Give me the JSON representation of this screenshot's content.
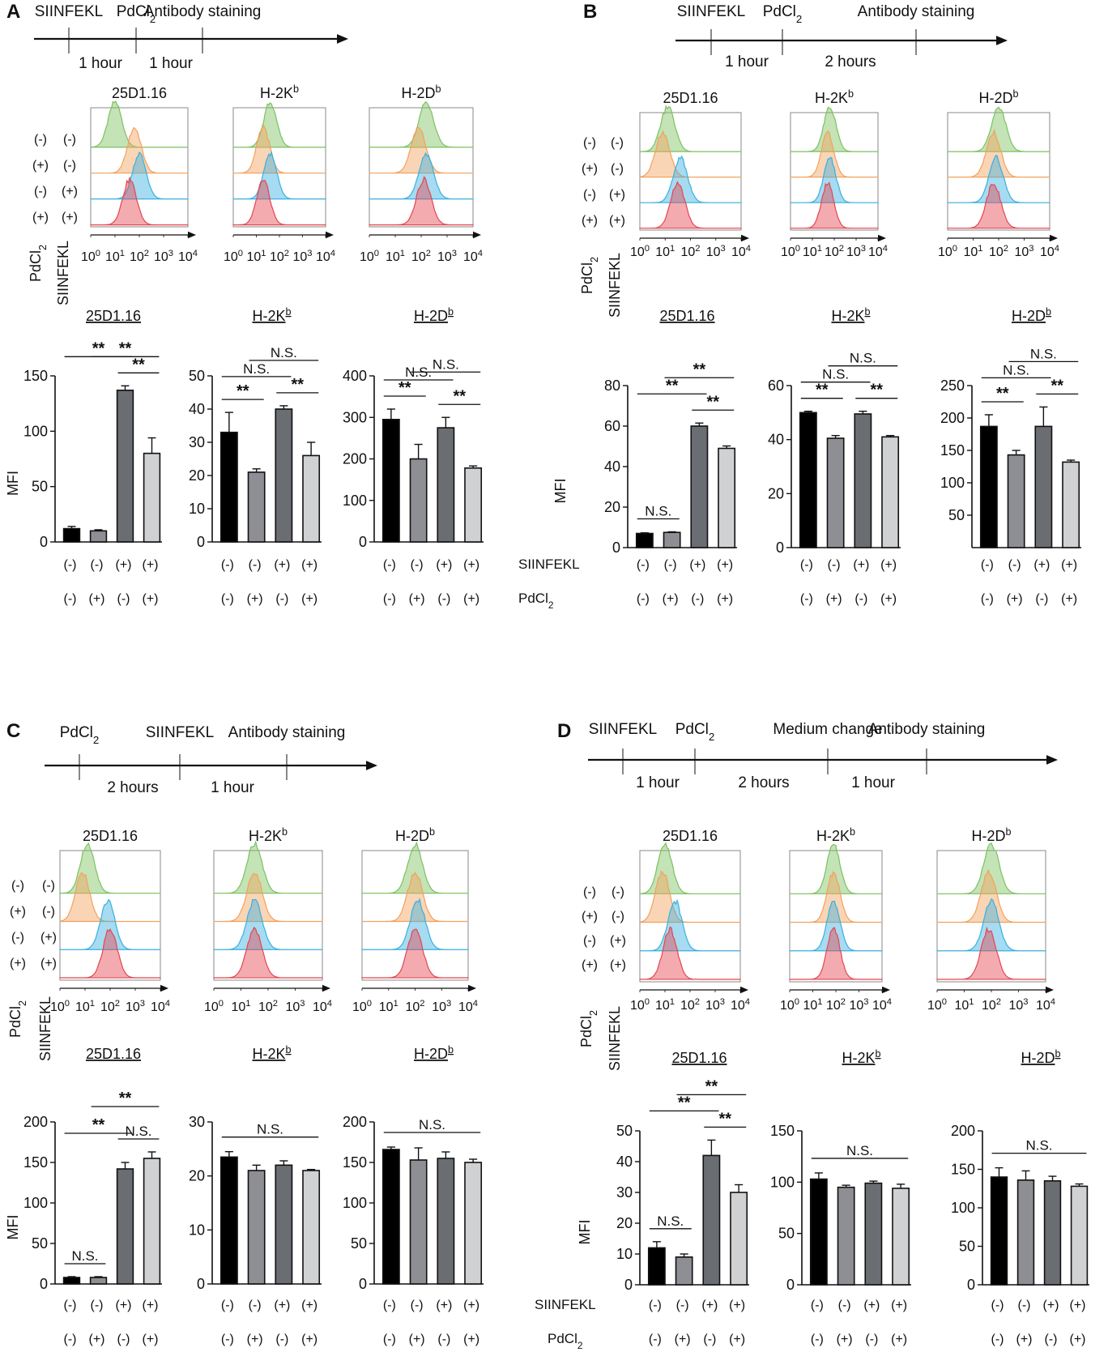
{
  "figure": {
    "common": {
      "hist_titles": [
        "25D1.16",
        "H-2Kb",
        "H-2Db"
      ],
      "pdcl2": "PdCl2",
      "siinfekl": "SIINFEKL",
      "mfi": "MFI",
      "minus": "(-)",
      "plus": "(+)",
      "ns": "N.S.",
      "sig": "**",
      "row_states": [
        [
          "(-)",
          "(-)"
        ],
        [
          "(+)",
          "(-)"
        ],
        [
          "(-)",
          "(+)"
        ],
        [
          "(+)",
          "(+)"
        ]
      ],
      "siinfekl_row": [
        "(-)",
        "(-)",
        "(+)",
        "(+)"
      ],
      "pdcl2_row": [
        "(-)",
        "(+)",
        "(-)",
        "(+)"
      ],
      "hist_ticks": [
        "10^0",
        "10^1",
        "10^2",
        "10^3",
        "10^4"
      ],
      "colors": {
        "green": "#7cc160",
        "orange": "#f2a15d",
        "blue": "#39b0df",
        "red": "#e5454f",
        "bars": [
          "#000000",
          "#8d8f94",
          "#6a6d72",
          "#cfd1d3"
        ]
      }
    },
    "panels": [
      {
        "letter": "A",
        "timeline": {
          "events": [
            "SIINFEKL",
            "PdCl2",
            "Antibody staining"
          ],
          "intervals": [
            "1 hour",
            "1 hour"
          ]
        },
        "chart_data": [
          {
            "type": "bar",
            "title": "25D1.16",
            "ylabel": "MFI",
            "ylim": [
              0,
              150
            ],
            "yticks": [
              0,
              50,
              100,
              150
            ],
            "values": [
              12,
              10,
              137,
              80
            ],
            "errors": [
              2,
              1,
              4,
              14
            ],
            "comparisons": [
              {
                "i": 0,
                "j": 2,
                "label": "**"
              },
              {
                "i": 1,
                "j": 3,
                "label": "**"
              },
              {
                "i": 2,
                "j": 3,
                "label": "**"
              }
            ]
          },
          {
            "type": "bar",
            "title": "H-2Kb",
            "ylim": [
              0,
              50
            ],
            "yticks": [
              0,
              10,
              20,
              30,
              40,
              50
            ],
            "values": [
              33,
              21,
              40,
              26
            ],
            "errors": [
              6,
              1,
              1,
              4
            ],
            "comparisons": [
              {
                "i": 0,
                "j": 1,
                "label": "**"
              },
              {
                "i": 0,
                "j": 2,
                "label": "N.S."
              },
              {
                "i": 1,
                "j": 3,
                "label": "N.S."
              },
              {
                "i": 2,
                "j": 3,
                "label": "**"
              }
            ]
          },
          {
            "type": "bar",
            "title": "H-2Db",
            "ylim": [
              0,
              400
            ],
            "yticks": [
              0,
              100,
              200,
              300,
              400
            ],
            "values": [
              295,
              200,
              275,
              178
            ],
            "errors": [
              25,
              35,
              25,
              5
            ],
            "comparisons": [
              {
                "i": 0,
                "j": 1,
                "label": "**"
              },
              {
                "i": 0,
                "j": 2,
                "label": "N.S."
              },
              {
                "i": 1,
                "j": 3,
                "label": "N.S."
              },
              {
                "i": 2,
                "j": 3,
                "label": "**"
              }
            ]
          }
        ]
      },
      {
        "letter": "B",
        "timeline": {
          "events": [
            "SIINFEKL",
            "PdCl2",
            "Antibody staining"
          ],
          "intervals": [
            "1 hour",
            "2 hours"
          ]
        },
        "chart_data": [
          {
            "type": "bar",
            "title": "25D1.16",
            "ylabel": "MFI",
            "ylim": [
              0,
              80
            ],
            "yticks": [
              0,
              20,
              40,
              60,
              80
            ],
            "values": [
              7,
              7.5,
              60,
              49
            ],
            "errors": [
              0.3,
              0.3,
              1.5,
              1.2
            ],
            "comparisons": [
              {
                "i": 0,
                "j": 1,
                "label": "N.S."
              },
              {
                "i": 0,
                "j": 2,
                "label": "**"
              },
              {
                "i": 1,
                "j": 3,
                "label": "**"
              },
              {
                "i": 2,
                "j": 3,
                "label": "**"
              }
            ]
          },
          {
            "type": "bar",
            "title": "H-2Kb",
            "ylim": [
              0,
              60
            ],
            "yticks": [
              0,
              20,
              40,
              60
            ],
            "values": [
              50,
              40.5,
              49.5,
              41
            ],
            "errors": [
              0.5,
              1,
              1,
              0.5
            ],
            "comparisons": [
              {
                "i": 0,
                "j": 1,
                "label": "**"
              },
              {
                "i": 0,
                "j": 2,
                "label": "N.S."
              },
              {
                "i": 1,
                "j": 3,
                "label": "N.S."
              },
              {
                "i": 2,
                "j": 3,
                "label": "**"
              }
            ]
          },
          {
            "type": "bar",
            "title": "H-2Db",
            "ylim": [
              0,
              250
            ],
            "yticks": [
              50,
              100,
              150,
              200,
              250
            ],
            "values": [
              187,
              143,
              187,
              132
            ],
            "errors": [
              18,
              7,
              30,
              3
            ],
            "comparisons": [
              {
                "i": 0,
                "j": 1,
                "label": "**"
              },
              {
                "i": 0,
                "j": 2,
                "label": "N.S."
              },
              {
                "i": 1,
                "j": 3,
                "label": "N.S."
              },
              {
                "i": 2,
                "j": 3,
                "label": "**"
              }
            ]
          }
        ]
      },
      {
        "letter": "C",
        "timeline": {
          "events": [
            "PdCl2",
            "SIINFEKL",
            "Antibody staining"
          ],
          "intervals": [
            "2 hours",
            "1 hour"
          ]
        },
        "chart_data": [
          {
            "type": "bar",
            "title": "25D1.16",
            "ylabel": "MFI",
            "ylim": [
              0,
              200
            ],
            "yticks": [
              0,
              50,
              100,
              150,
              200
            ],
            "values": [
              8,
              8,
              142,
              155
            ],
            "errors": [
              1,
              1,
              8,
              8
            ],
            "comparisons": [
              {
                "i": 0,
                "j": 1,
                "label": "N.S."
              },
              {
                "i": 0,
                "j": 2,
                "label": "**"
              },
              {
                "i": 1,
                "j": 3,
                "label": "**"
              },
              {
                "i": 2,
                "j": 3,
                "label": "N.S."
              }
            ]
          },
          {
            "type": "bar",
            "title": "H-2Kb",
            "ylim": [
              0,
              30
            ],
            "yticks": [
              0,
              10,
              20,
              30
            ],
            "values": [
              23.5,
              21,
              22,
              21
            ],
            "errors": [
              1,
              1,
              0.8,
              0.2
            ],
            "comparisons": [
              {
                "i": 0,
                "j": 3,
                "label": "N.S."
              }
            ]
          },
          {
            "type": "bar",
            "title": "H-2Db",
            "ylim": [
              0,
              200
            ],
            "yticks": [
              0,
              50,
              100,
              150,
              200
            ],
            "values": [
              166,
              153,
              155,
              150
            ],
            "errors": [
              3,
              15,
              8,
              4
            ],
            "comparisons": [
              {
                "i": 0,
                "j": 3,
                "label": "N.S."
              }
            ]
          }
        ]
      },
      {
        "letter": "D",
        "timeline": {
          "events": [
            "SIINFEKL",
            "PdCl2",
            "Medium change",
            "Antibody staining"
          ],
          "intervals": [
            "1 hour",
            "2 hours",
            "1 hour"
          ]
        },
        "chart_data": [
          {
            "type": "bar",
            "title": "25D1.16",
            "ylabel": "MFI",
            "ylim": [
              0,
              50
            ],
            "yticks": [
              0,
              10,
              20,
              30,
              40,
              50
            ],
            "values": [
              12,
              9,
              42,
              30
            ],
            "errors": [
              2,
              1,
              5,
              2.5
            ],
            "comparisons": [
              {
                "i": 0,
                "j": 1,
                "label": "N.S."
              },
              {
                "i": 0,
                "j": 2,
                "label": "**"
              },
              {
                "i": 1,
                "j": 3,
                "label": "**"
              },
              {
                "i": 2,
                "j": 3,
                "label": "**"
              }
            ]
          },
          {
            "type": "bar",
            "title": "H-2Kb",
            "ylim": [
              0,
              150
            ],
            "yticks": [
              0,
              50,
              100,
              150
            ],
            "values": [
              103,
              95,
              99,
              94
            ],
            "errors": [
              6,
              2,
              2,
              4
            ],
            "comparisons": [
              {
                "i": 0,
                "j": 3,
                "label": "N.S."
              }
            ]
          },
          {
            "type": "bar",
            "title": "H-2Db",
            "ylim": [
              0,
              200
            ],
            "yticks": [
              0,
              50,
              100,
              150,
              200
            ],
            "values": [
              140,
              136,
              135,
              128
            ],
            "errors": [
              12,
              12,
              6,
              3
            ],
            "comparisons": [
              {
                "i": 0,
                "j": 3,
                "label": "N.S."
              }
            ]
          }
        ]
      }
    ]
  }
}
